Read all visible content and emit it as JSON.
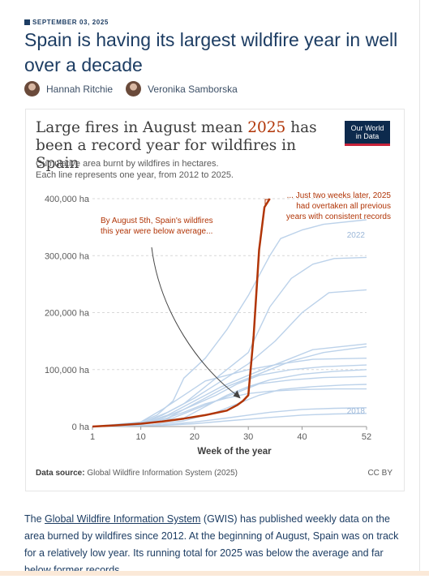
{
  "article": {
    "date": "SEPTEMBER 03, 2025",
    "title": "Spain is having its largest wildfire year in well over a decade",
    "authors": [
      "Hannah Ritchie",
      "Veronika Samborska"
    ],
    "body_link": "Global Wildfire Information System",
    "body_text": " (GWIS) has published weekly data on the area burned by wildfires since 2012. At the beginning of August, Spain was on track for a relatively low year. Its running total for 2025 was below the average and far below former records.",
    "body_prefix": "The "
  },
  "chart_data": {
    "type": "line",
    "title_part1": "Large fires in August mean ",
    "title_year": "2025",
    "title_part2": " has been a record year for wildfires in Spain",
    "subtitle_line1": "Cumulative area burnt by wildfires in hectares.",
    "subtitle_line2": "Each line represents one year, from 2012 to 2025.",
    "logo_line1": "Our World",
    "logo_line2": "in Data",
    "xlabel": "Week of the year",
    "x_ticks": [
      "1",
      "10",
      "20",
      "30",
      "40",
      "52"
    ],
    "x_tick_values": [
      1,
      10,
      20,
      30,
      40,
      52
    ],
    "y_ticks": [
      "0 ha",
      "100,000 ha",
      "200,000 ha",
      "300,000 ha",
      "400,000 ha"
    ],
    "y_tick_values": [
      0,
      100000,
      200000,
      300000,
      400000
    ],
    "xlim": [
      1,
      52
    ],
    "ylim": [
      0,
      400000
    ],
    "grid": "horizontal dashed",
    "colors": {
      "highlight": "#b13507",
      "background_series": "#bcd2ea",
      "text": "#3d3d3d"
    },
    "annotation_left": [
      "By August 5th, Spain's wildfires",
      "this year were below average..."
    ],
    "annotation_right": [
      "... Just two weeks later, 2025",
      "had overtaken all previous",
      "years with consistent records"
    ],
    "label_2022": "2022",
    "label_2018": "2018",
    "source_label": "Data source:",
    "source": "Global Wildfire Information System (2025)",
    "license": "CC BY",
    "highlight_series": {
      "name": "2025",
      "x": [
        1,
        5,
        10,
        14,
        18,
        22,
        26,
        28,
        29,
        30,
        31,
        32,
        33,
        34
      ],
      "y": [
        0,
        2000,
        5000,
        9000,
        14000,
        20000,
        28000,
        38000,
        45000,
        55000,
        160000,
        310000,
        385000,
        400000
      ]
    },
    "series": [
      {
        "x": [
          1,
          8,
          10,
          13,
          16,
          18,
          22,
          26,
          30,
          34,
          36,
          40,
          44,
          52
        ],
        "y": [
          0,
          3000,
          8000,
          20000,
          45000,
          85000,
          120000,
          170000,
          230000,
          300000,
          330000,
          345000,
          355000,
          363000
        ]
      },
      {
        "x": [
          1,
          10,
          14,
          18,
          22,
          26,
          30,
          34,
          38,
          42,
          46,
          52
        ],
        "y": [
          0,
          5000,
          20000,
          40000,
          70000,
          100000,
          130000,
          210000,
          260000,
          285000,
          295000,
          297000
        ]
      },
      {
        "x": [
          1,
          10,
          15,
          20,
          25,
          30,
          35,
          40,
          45,
          52
        ],
        "y": [
          0,
          6000,
          25000,
          50000,
          80000,
          110000,
          150000,
          200000,
          235000,
          240000
        ]
      },
      {
        "x": [
          1,
          10,
          15,
          20,
          25,
          30,
          34,
          38,
          42,
          52
        ],
        "y": [
          0,
          5000,
          20000,
          45000,
          70000,
          90000,
          105000,
          120000,
          135000,
          145000
        ]
      },
      {
        "x": [
          1,
          10,
          15,
          20,
          26,
          30,
          34,
          38,
          44,
          52
        ],
        "y": [
          0,
          4000,
          15000,
          40000,
          70000,
          85000,
          100000,
          115000,
          130000,
          140000
        ]
      },
      {
        "x": [
          1,
          10,
          14,
          18,
          22,
          26,
          30,
          36,
          42,
          52
        ],
        "y": [
          0,
          8000,
          30000,
          55000,
          80000,
          90000,
          100000,
          110000,
          118000,
          120000
        ]
      },
      {
        "x": [
          1,
          10,
          14,
          18,
          24,
          28,
          32,
          38,
          44,
          52
        ],
        "y": [
          0,
          4000,
          15000,
          30000,
          55000,
          75000,
          90000,
          100000,
          105000,
          108000
        ]
      },
      {
        "x": [
          1,
          12,
          18,
          22,
          26,
          30,
          34,
          40,
          46,
          52
        ],
        "y": [
          0,
          6000,
          15000,
          35000,
          55000,
          70000,
          82000,
          92000,
          97000,
          100000
        ]
      },
      {
        "x": [
          1,
          10,
          16,
          20,
          24,
          28,
          32,
          38,
          44,
          52
        ],
        "y": [
          0,
          5000,
          15000,
          30000,
          45000,
          60000,
          75000,
          82000,
          86000,
          88000
        ]
      },
      {
        "x": [
          1,
          12,
          18,
          24,
          28,
          32,
          36,
          42,
          48,
          52
        ],
        "y": [
          0,
          3000,
          10000,
          25000,
          40000,
          55000,
          65000,
          70000,
          73000,
          74000
        ]
      },
      {
        "x": [
          1,
          14,
          20,
          26,
          30,
          34,
          40,
          46,
          52
        ],
        "y": [
          0,
          3000,
          8000,
          15000,
          20000,
          25000,
          30000,
          32000,
          33000
        ]
      },
      {
        "x": [
          1,
          14,
          20,
          26,
          30,
          34,
          40,
          46,
          52
        ],
        "y": [
          0,
          2000,
          5000,
          10000,
          13000,
          16000,
          20000,
          22000,
          23000
        ]
      },
      {
        "x": [
          1,
          10,
          14,
          18,
          22,
          26,
          30,
          34,
          40,
          46,
          52
        ],
        "y": [
          0,
          4000,
          12000,
          25000,
          40000,
          50000,
          58000,
          62000,
          65000,
          66000,
          66000
        ]
      }
    ]
  }
}
